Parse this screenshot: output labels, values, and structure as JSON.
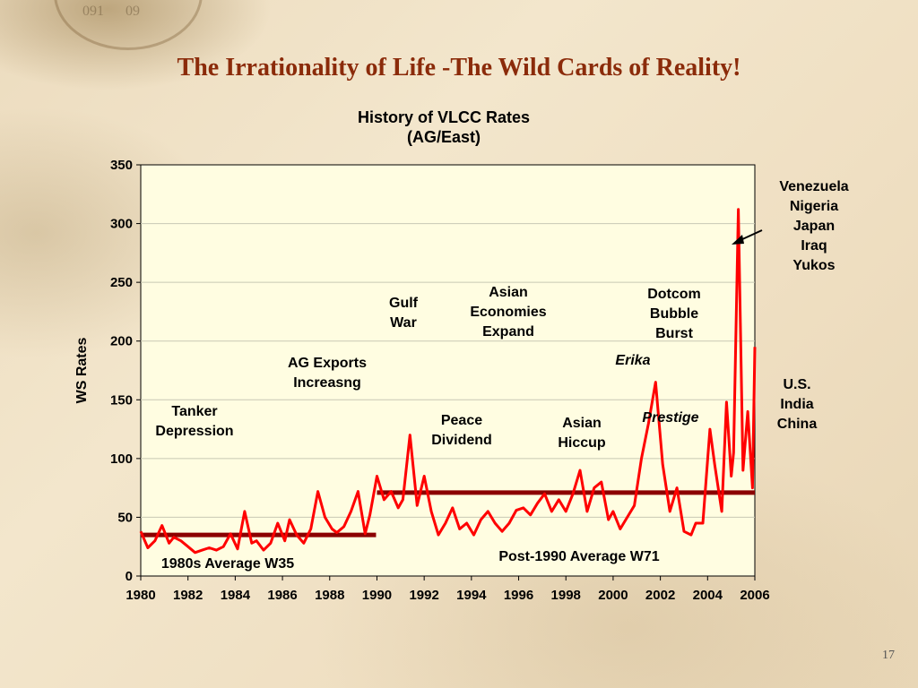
{
  "slide": {
    "title": "The Irrationality of Life -The Wild Cards of Reality!",
    "page_number": "17",
    "compass_marks": [
      "091",
      "09"
    ]
  },
  "chart_data": {
    "type": "line",
    "title_line1": "History of VLCC Rates",
    "title_line2": "(AG/East)",
    "xlabel": "",
    "ylabel": "WS Rates",
    "xlim": [
      1980,
      2006
    ],
    "ylim": [
      0,
      350
    ],
    "x_ticks": [
      "1980",
      "1982",
      "1984",
      "1986",
      "1988",
      "1990",
      "1992",
      "1994",
      "1996",
      "1998",
      "2000",
      "2002",
      "2004",
      "2006"
    ],
    "y_ticks": [
      "0",
      "50",
      "100",
      "150",
      "200",
      "250",
      "300",
      "350"
    ],
    "grid": "horizontal",
    "series": [
      {
        "color": "#ff0000",
        "x": [
          1980.0,
          1980.3,
          1980.6,
          1980.9,
          1981.2,
          1981.4,
          1981.7,
          1982.0,
          1982.3,
          1982.6,
          1982.9,
          1983.2,
          1983.5,
          1983.8,
          1984.1,
          1984.4,
          1984.7,
          1984.9,
          1985.2,
          1985.5,
          1985.8,
          1986.1,
          1986.3,
          1986.6,
          1986.9,
          1987.2,
          1987.5,
          1987.8,
          1988.1,
          1988.3,
          1988.6,
          1988.9,
          1989.2,
          1989.5,
          1989.7,
          1990.0,
          1990.3,
          1990.6,
          1990.9,
          1991.1,
          1991.4,
          1991.7,
          1992.0,
          1992.3,
          1992.6,
          1992.9,
          1993.2,
          1993.5,
          1993.8,
          1994.1,
          1994.4,
          1994.7,
          1995.0,
          1995.3,
          1995.6,
          1995.9,
          1996.2,
          1996.5,
          1996.8,
          1997.1,
          1997.4,
          1997.7,
          1998.0,
          1998.3,
          1998.6,
          1998.9,
          1999.2,
          1999.5,
          1999.8,
          2000.0,
          2000.3,
          2000.6,
          2000.9,
          2001.2,
          2001.5,
          2001.8,
          2002.1,
          2002.4,
          2002.7,
          2003.0,
          2003.3,
          2003.5,
          2003.8,
          2004.1,
          2004.3,
          2004.6,
          2004.8,
          2005.0,
          2005.1,
          2005.3,
          2005.5,
          2005.7,
          2005.9,
          2006.0
        ],
        "values": [
          38,
          24,
          30,
          43,
          28,
          33,
          30,
          25,
          20,
          22,
          24,
          22,
          25,
          36,
          23,
          55,
          28,
          30,
          22,
          28,
          45,
          30,
          48,
          35,
          28,
          40,
          72,
          50,
          40,
          37,
          42,
          55,
          72,
          36,
          52,
          85,
          65,
          72,
          58,
          65,
          120,
          60,
          85,
          55,
          35,
          45,
          58,
          40,
          45,
          35,
          48,
          55,
          45,
          38,
          45,
          56,
          58,
          52,
          62,
          70,
          55,
          65,
          55,
          70,
          90,
          55,
          75,
          80,
          48,
          55,
          40,
          50,
          60,
          100,
          130,
          165,
          95,
          55,
          75,
          38,
          35,
          45,
          45,
          125,
          95,
          55,
          148,
          85,
          105,
          312,
          90,
          140,
          75,
          195
        ]
      }
    ],
    "reference_lines": [
      {
        "label": "1980s Average W35",
        "value": 35,
        "x_range": [
          1980,
          1990
        ],
        "color": "#8b0000"
      },
      {
        "label": "Post-1990 Average W71",
        "value": 71,
        "x_range": [
          1990,
          2006
        ],
        "color": "#8b0000"
      }
    ],
    "annotations": [
      {
        "key": "tanker",
        "line1": "Tanker",
        "line2": "Depression",
        "italic": false
      },
      {
        "key": "ag",
        "line1": "AG Exports",
        "line2": "Increasng",
        "italic": false
      },
      {
        "key": "gulf",
        "line1": "Gulf",
        "line2": "War",
        "italic": false
      },
      {
        "key": "peace",
        "line1": "Peace",
        "line2": "Dividend",
        "italic": false
      },
      {
        "key": "asian_econ",
        "line1": "Asian",
        "line2": "Economies",
        "line3": "Expand",
        "italic": false
      },
      {
        "key": "asian_hiccup",
        "line1": "Asian",
        "line2": "Hiccup",
        "italic": false
      },
      {
        "key": "dotcom",
        "line1": "Dotcom",
        "line2": "Bubble",
        "line3": "Burst",
        "italic": false
      },
      {
        "key": "erika",
        "line1": "Erika",
        "italic": true
      },
      {
        "key": "prestige",
        "line1": "Prestige",
        "italic": true
      },
      {
        "key": "venezuela",
        "line1": "Venezuela",
        "line2": "Nigeria",
        "line3": "Japan",
        "line4": "Iraq",
        "line5": "Yukos",
        "italic": false
      },
      {
        "key": "usic",
        "line1": "U.S.",
        "line2": "India",
        "line3": "China",
        "italic": false
      }
    ]
  }
}
